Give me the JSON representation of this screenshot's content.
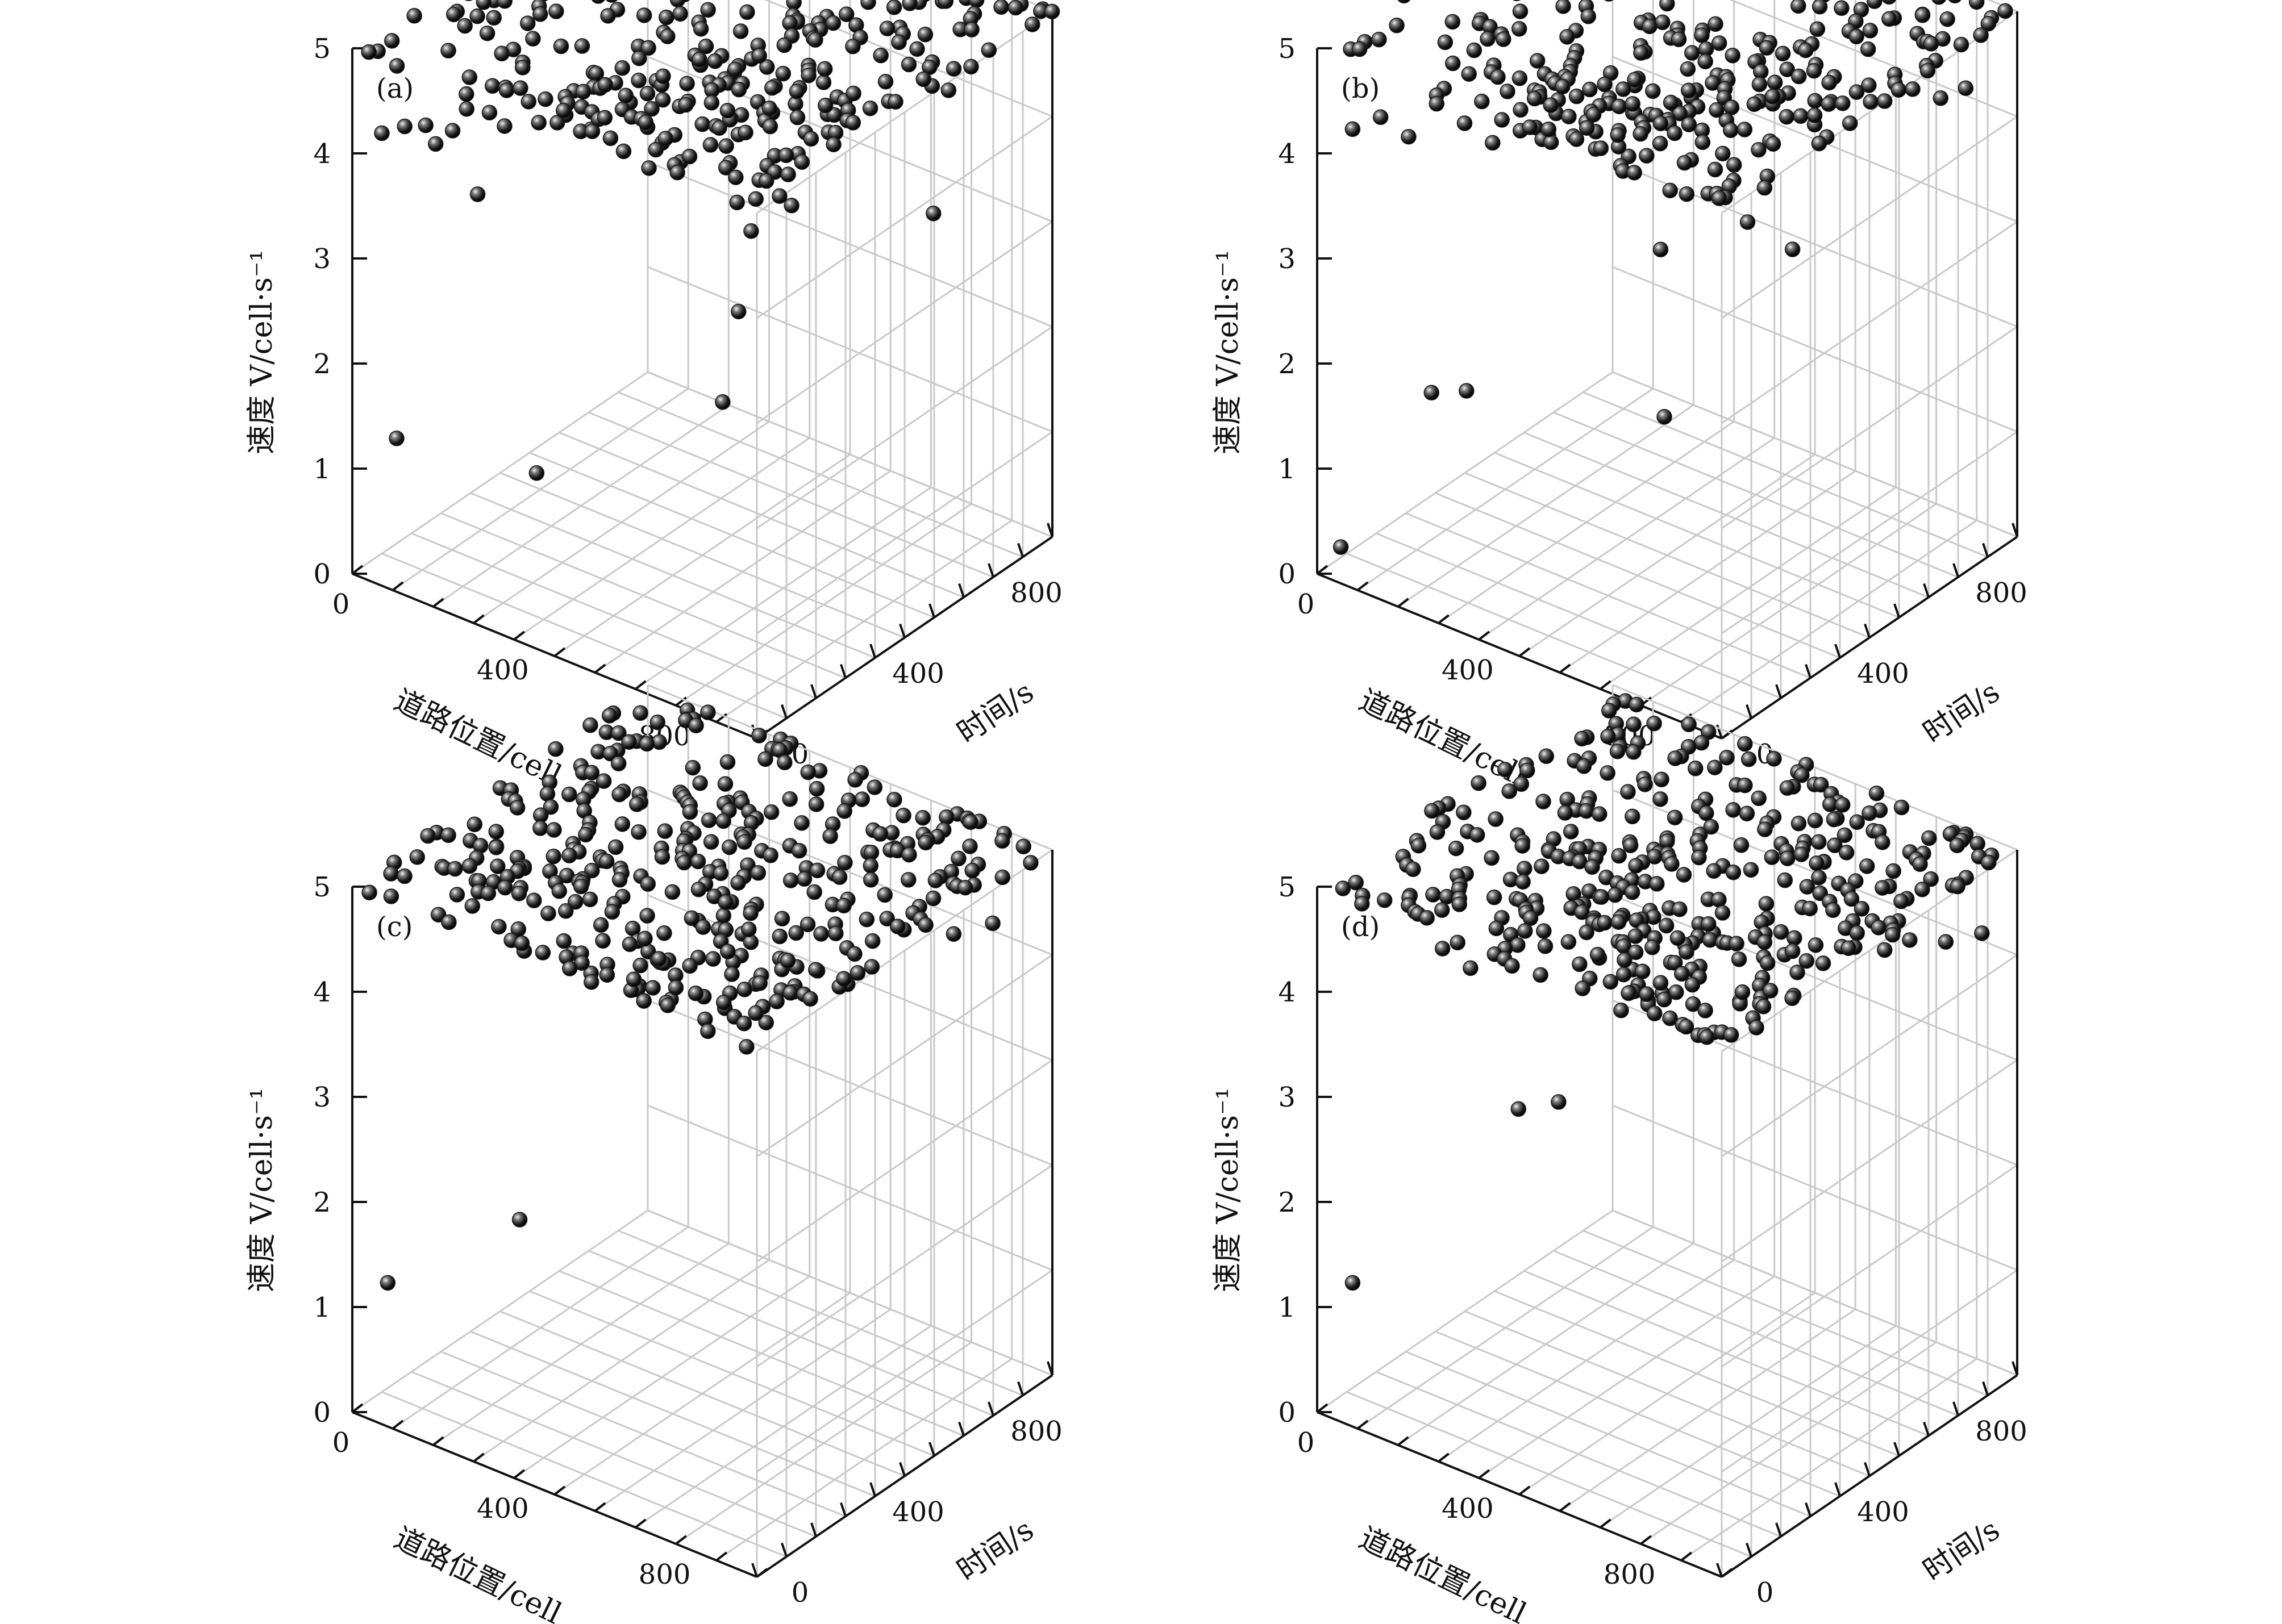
{
  "figure": {
    "background": "#ffffff",
    "grid_color": "#c9c9c9",
    "axis_color": "#111111",
    "marker_color": "#1a1a1a",
    "marker_highlight": "#f2f2f2"
  },
  "chart_data": [
    {
      "type": "scatter",
      "panel_label": "(a)",
      "xlabel": "道路位置/cell",
      "ylabel": "时间/s",
      "zlabel": "速度 V/cell·s⁻¹",
      "x_ticks": [
        "0",
        "400",
        "800"
      ],
      "y_ticks": [
        "0",
        "400",
        "800"
      ],
      "z_ticks": [
        "0",
        "1",
        "2",
        "3",
        "4",
        "5"
      ],
      "xlim": [
        0,
        1000
      ],
      "ylim": [
        0,
        1000
      ],
      "zlim": [
        0,
        5
      ],
      "grid": true,
      "top_layer": {
        "z": 5,
        "density": "dense",
        "count_estimate": 300
      },
      "points": [
        [
          0,
          100,
          4.0
        ],
        [
          20,
          150,
          4.0
        ],
        [
          60,
          200,
          3.8
        ],
        [
          80,
          230,
          3.9
        ],
        [
          120,
          300,
          4.0
        ],
        [
          160,
          350,
          4.2
        ],
        [
          200,
          420,
          3.8
        ],
        [
          250,
          470,
          3.7
        ],
        [
          260,
          500,
          4.1
        ],
        [
          300,
          560,
          4.3
        ],
        [
          330,
          600,
          4.1
        ],
        [
          360,
          640,
          4.0
        ],
        [
          400,
          680,
          4.2
        ],
        [
          430,
          720,
          3.9
        ],
        [
          470,
          760,
          4.1
        ],
        [
          500,
          820,
          3.8
        ],
        [
          540,
          860,
          4.0
        ],
        [
          580,
          900,
          4.2
        ],
        [
          620,
          940,
          4.1
        ],
        [
          660,
          980,
          4.0
        ],
        [
          280,
          450,
          3.9
        ],
        [
          320,
          480,
          3.6
        ],
        [
          350,
          520,
          3.8
        ],
        [
          380,
          540,
          3.7
        ],
        [
          410,
          580,
          3.5
        ],
        [
          440,
          610,
          3.6
        ],
        [
          460,
          640,
          3.9
        ],
        [
          490,
          660,
          3.7
        ],
        [
          520,
          700,
          3.9
        ],
        [
          560,
          740,
          3.8
        ],
        [
          600,
          780,
          3.9
        ],
        [
          640,
          820,
          4.0
        ],
        [
          700,
          880,
          3.9
        ],
        [
          740,
          920,
          4.1
        ],
        [
          780,
          950,
          4.0
        ],
        [
          200,
          380,
          4.1
        ],
        [
          230,
          400,
          4.0
        ],
        [
          150,
          310,
          3.9
        ],
        [
          100,
          250,
          4.1
        ],
        [
          50,
          180,
          4.0
        ],
        [
          380,
          640,
          4.3
        ],
        [
          420,
          600,
          4.4
        ],
        [
          450,
          680,
          4.2
        ],
        [
          480,
          720,
          4.3
        ],
        [
          510,
          760,
          4.1
        ],
        [
          400,
          560,
          4.0
        ],
        [
          430,
          540,
          4.1
        ],
        [
          360,
          500,
          3.9
        ],
        [
          340,
          460,
          4.2
        ],
        [
          310,
          430,
          4.0
        ],
        [
          120,
          260,
          3.3
        ],
        [
          560,
          720,
          3.0
        ],
        [
          460,
          720,
          2.6
        ],
        [
          750,
          940,
          2.8
        ],
        [
          480,
          650,
          2.0
        ],
        [
          470,
          610,
          1.2
        ],
        [
          0,
          150,
          1.0
        ],
        [
          200,
          350,
          0.6
        ]
      ]
    },
    {
      "type": "scatter",
      "panel_label": "(b)",
      "xlabel": "道路位置/cell",
      "ylabel": "时间/s",
      "zlabel": "速度 V/cell·s⁻¹",
      "x_ticks": [
        "0",
        "400",
        "800"
      ],
      "y_ticks": [
        "0",
        "400",
        "800"
      ],
      "z_ticks": [
        "0",
        "1",
        "2",
        "3",
        "4",
        "5"
      ],
      "xlim": [
        0,
        1000
      ],
      "ylim": [
        0,
        1000
      ],
      "zlim": [
        0,
        5
      ],
      "grid": true,
      "top_layer": {
        "z": 5,
        "density": "dense",
        "count_estimate": 320
      },
      "points": [
        [
          0,
          120,
          4.0
        ],
        [
          40,
          160,
          4.1
        ],
        [
          80,
          200,
          3.9
        ],
        [
          120,
          240,
          4.2
        ],
        [
          160,
          280,
          4.0
        ],
        [
          200,
          320,
          3.8
        ],
        [
          240,
          360,
          4.1
        ],
        [
          280,
          400,
          3.9
        ],
        [
          320,
          440,
          4.2
        ],
        [
          360,
          480,
          4.3
        ],
        [
          400,
          520,
          4.1
        ],
        [
          440,
          560,
          3.9
        ],
        [
          480,
          600,
          4.2
        ],
        [
          520,
          640,
          4.0
        ],
        [
          560,
          680,
          3.8
        ],
        [
          600,
          720,
          4.1
        ],
        [
          640,
          760,
          3.9
        ],
        [
          680,
          800,
          4.0
        ],
        [
          720,
          840,
          4.1
        ],
        [
          760,
          880,
          4.0
        ],
        [
          800,
          920,
          4.1
        ],
        [
          840,
          960,
          4.0
        ],
        [
          880,
          990,
          4.1
        ],
        [
          260,
          380,
          4.2
        ],
        [
          300,
          420,
          4.3
        ],
        [
          340,
          470,
          4.0
        ],
        [
          380,
          500,
          3.7
        ],
        [
          420,
          540,
          3.6
        ],
        [
          460,
          580,
          3.8
        ],
        [
          500,
          620,
          3.7
        ],
        [
          540,
          660,
          3.8
        ],
        [
          580,
          700,
          3.6
        ],
        [
          620,
          740,
          3.9
        ],
        [
          420,
          500,
          4.4
        ],
        [
          450,
          520,
          4.3
        ],
        [
          480,
          540,
          4.2
        ],
        [
          510,
          560,
          4.0
        ],
        [
          400,
          470,
          3.9
        ],
        [
          380,
          440,
          3.8
        ],
        [
          360,
          420,
          4.0
        ],
        [
          330,
          400,
          4.1
        ],
        [
          300,
          380,
          4.2
        ],
        [
          270,
          350,
          4.0
        ],
        [
          660,
          780,
          3.9
        ],
        [
          700,
          820,
          4.0
        ],
        [
          740,
          860,
          4.0
        ],
        [
          780,
          900,
          4.1
        ],
        [
          580,
          720,
          3.2
        ],
        [
          560,
          690,
          2.9
        ],
        [
          620,
          760,
          2.6
        ],
        [
          440,
          560,
          2.7
        ],
        [
          100,
          250,
          1.4
        ],
        [
          150,
          300,
          1.4
        ],
        [
          420,
          600,
          1.0
        ],
        [
          0,
          80,
          0.1
        ]
      ]
    },
    {
      "type": "scatter",
      "panel_label": "(c)",
      "xlabel": "道路位置/cell",
      "ylabel": "时间/s",
      "zlabel": "速度 V/cell·s⁻¹",
      "x_ticks": [
        "0",
        "400",
        "800"
      ],
      "y_ticks": [
        "0",
        "400",
        "800"
      ],
      "z_ticks": [
        "0",
        "1",
        "2",
        "3",
        "4",
        "5"
      ],
      "xlim": [
        0,
        1000
      ],
      "ylim": [
        0,
        1000
      ],
      "zlim": [
        0,
        5
      ],
      "grid": true,
      "top_layer": {
        "z": 5,
        "density": "dense",
        "count_estimate": 340
      },
      "points": [
        [
          200,
          300,
          4.2
        ],
        [
          230,
          330,
          4.1
        ],
        [
          260,
          360,
          4.2
        ],
        [
          290,
          380,
          4.0
        ],
        [
          320,
          410,
          4.2
        ],
        [
          380,
          470,
          4.2
        ],
        [
          400,
          490,
          4.0
        ],
        [
          440,
          540,
          3.9
        ],
        [
          480,
          590,
          4.1
        ],
        [
          520,
          630,
          4.2
        ],
        [
          560,
          680,
          4.1
        ],
        [
          600,
          720,
          4.2
        ],
        [
          640,
          760,
          4.1
        ],
        [
          680,
          810,
          4.2
        ],
        [
          720,
          860,
          4.1
        ],
        [
          760,
          900,
          4.1
        ],
        [
          800,
          940,
          4.0
        ],
        [
          860,
          990,
          4.1
        ],
        [
          260,
          380,
          3.9
        ],
        [
          360,
          460,
          3.8
        ],
        [
          420,
          520,
          3.7
        ],
        [
          460,
          560,
          3.6
        ],
        [
          500,
          600,
          3.8
        ],
        [
          540,
          640,
          3.7
        ],
        [
          580,
          680,
          3.9
        ],
        [
          620,
          720,
          3.8
        ],
        [
          660,
          760,
          3.7
        ],
        [
          700,
          800,
          3.8
        ],
        [
          430,
          560,
          4.3
        ],
        [
          470,
          620,
          4.4
        ],
        [
          510,
          650,
          4.3
        ],
        [
          490,
          600,
          4.0
        ],
        [
          400,
          520,
          3.5
        ],
        [
          440,
          560,
          3.6
        ],
        [
          480,
          600,
          3.5
        ],
        [
          530,
          640,
          3.4
        ],
        [
          560,
          670,
          3.5
        ],
        [
          0,
          120,
          1.0
        ],
        [
          180,
          320,
          1.5
        ]
      ]
    },
    {
      "type": "scatter",
      "panel_label": "(d)",
      "xlabel": "道路位置/cell",
      "ylabel": "时间/s",
      "zlabel": "速度 V/cell·s⁻¹",
      "x_ticks": [
        "0",
        "400",
        "800"
      ],
      "y_ticks": [
        "0",
        "400",
        "800"
      ],
      "z_ticks": [
        "0",
        "1",
        "2",
        "3",
        "4",
        "5"
      ],
      "xlim": [
        0,
        1000
      ],
      "ylim": [
        0,
        1000
      ],
      "zlim": [
        0,
        5
      ],
      "grid": true,
      "top_layer": {
        "z": 5,
        "density": "dense",
        "count_estimate": 360
      },
      "points": [
        [
          120,
          260,
          4.1
        ],
        [
          160,
          300,
          3.9
        ],
        [
          260,
          400,
          3.8
        ],
        [
          300,
          440,
          4.1
        ],
        [
          330,
          460,
          4.2
        ],
        [
          360,
          480,
          4.3
        ],
        [
          380,
          500,
          4.3
        ],
        [
          350,
          470,
          4.0
        ],
        [
          380,
          520,
          3.9
        ],
        [
          410,
          540,
          3.8
        ],
        [
          360,
          500,
          3.7
        ],
        [
          390,
          520,
          3.6
        ],
        [
          420,
          540,
          3.6
        ],
        [
          440,
          560,
          3.7
        ],
        [
          460,
          590,
          4.1
        ],
        [
          500,
          640,
          4.2
        ],
        [
          520,
          660,
          4.3
        ],
        [
          540,
          680,
          4.0
        ],
        [
          580,
          720,
          4.0
        ],
        [
          620,
          760,
          3.9
        ],
        [
          700,
          840,
          3.9
        ],
        [
          760,
          880,
          3.9
        ],
        [
          800,
          910,
          4.0
        ],
        [
          860,
          950,
          4.0
        ],
        [
          920,
          990,
          4.1
        ],
        [
          540,
          700,
          3.5
        ],
        [
          580,
          740,
          3.5
        ],
        [
          640,
          780,
          3.8
        ],
        [
          220,
          380,
          2.5
        ],
        [
          290,
          420,
          2.6
        ],
        [
          0,
          120,
          1.0
        ]
      ]
    }
  ]
}
